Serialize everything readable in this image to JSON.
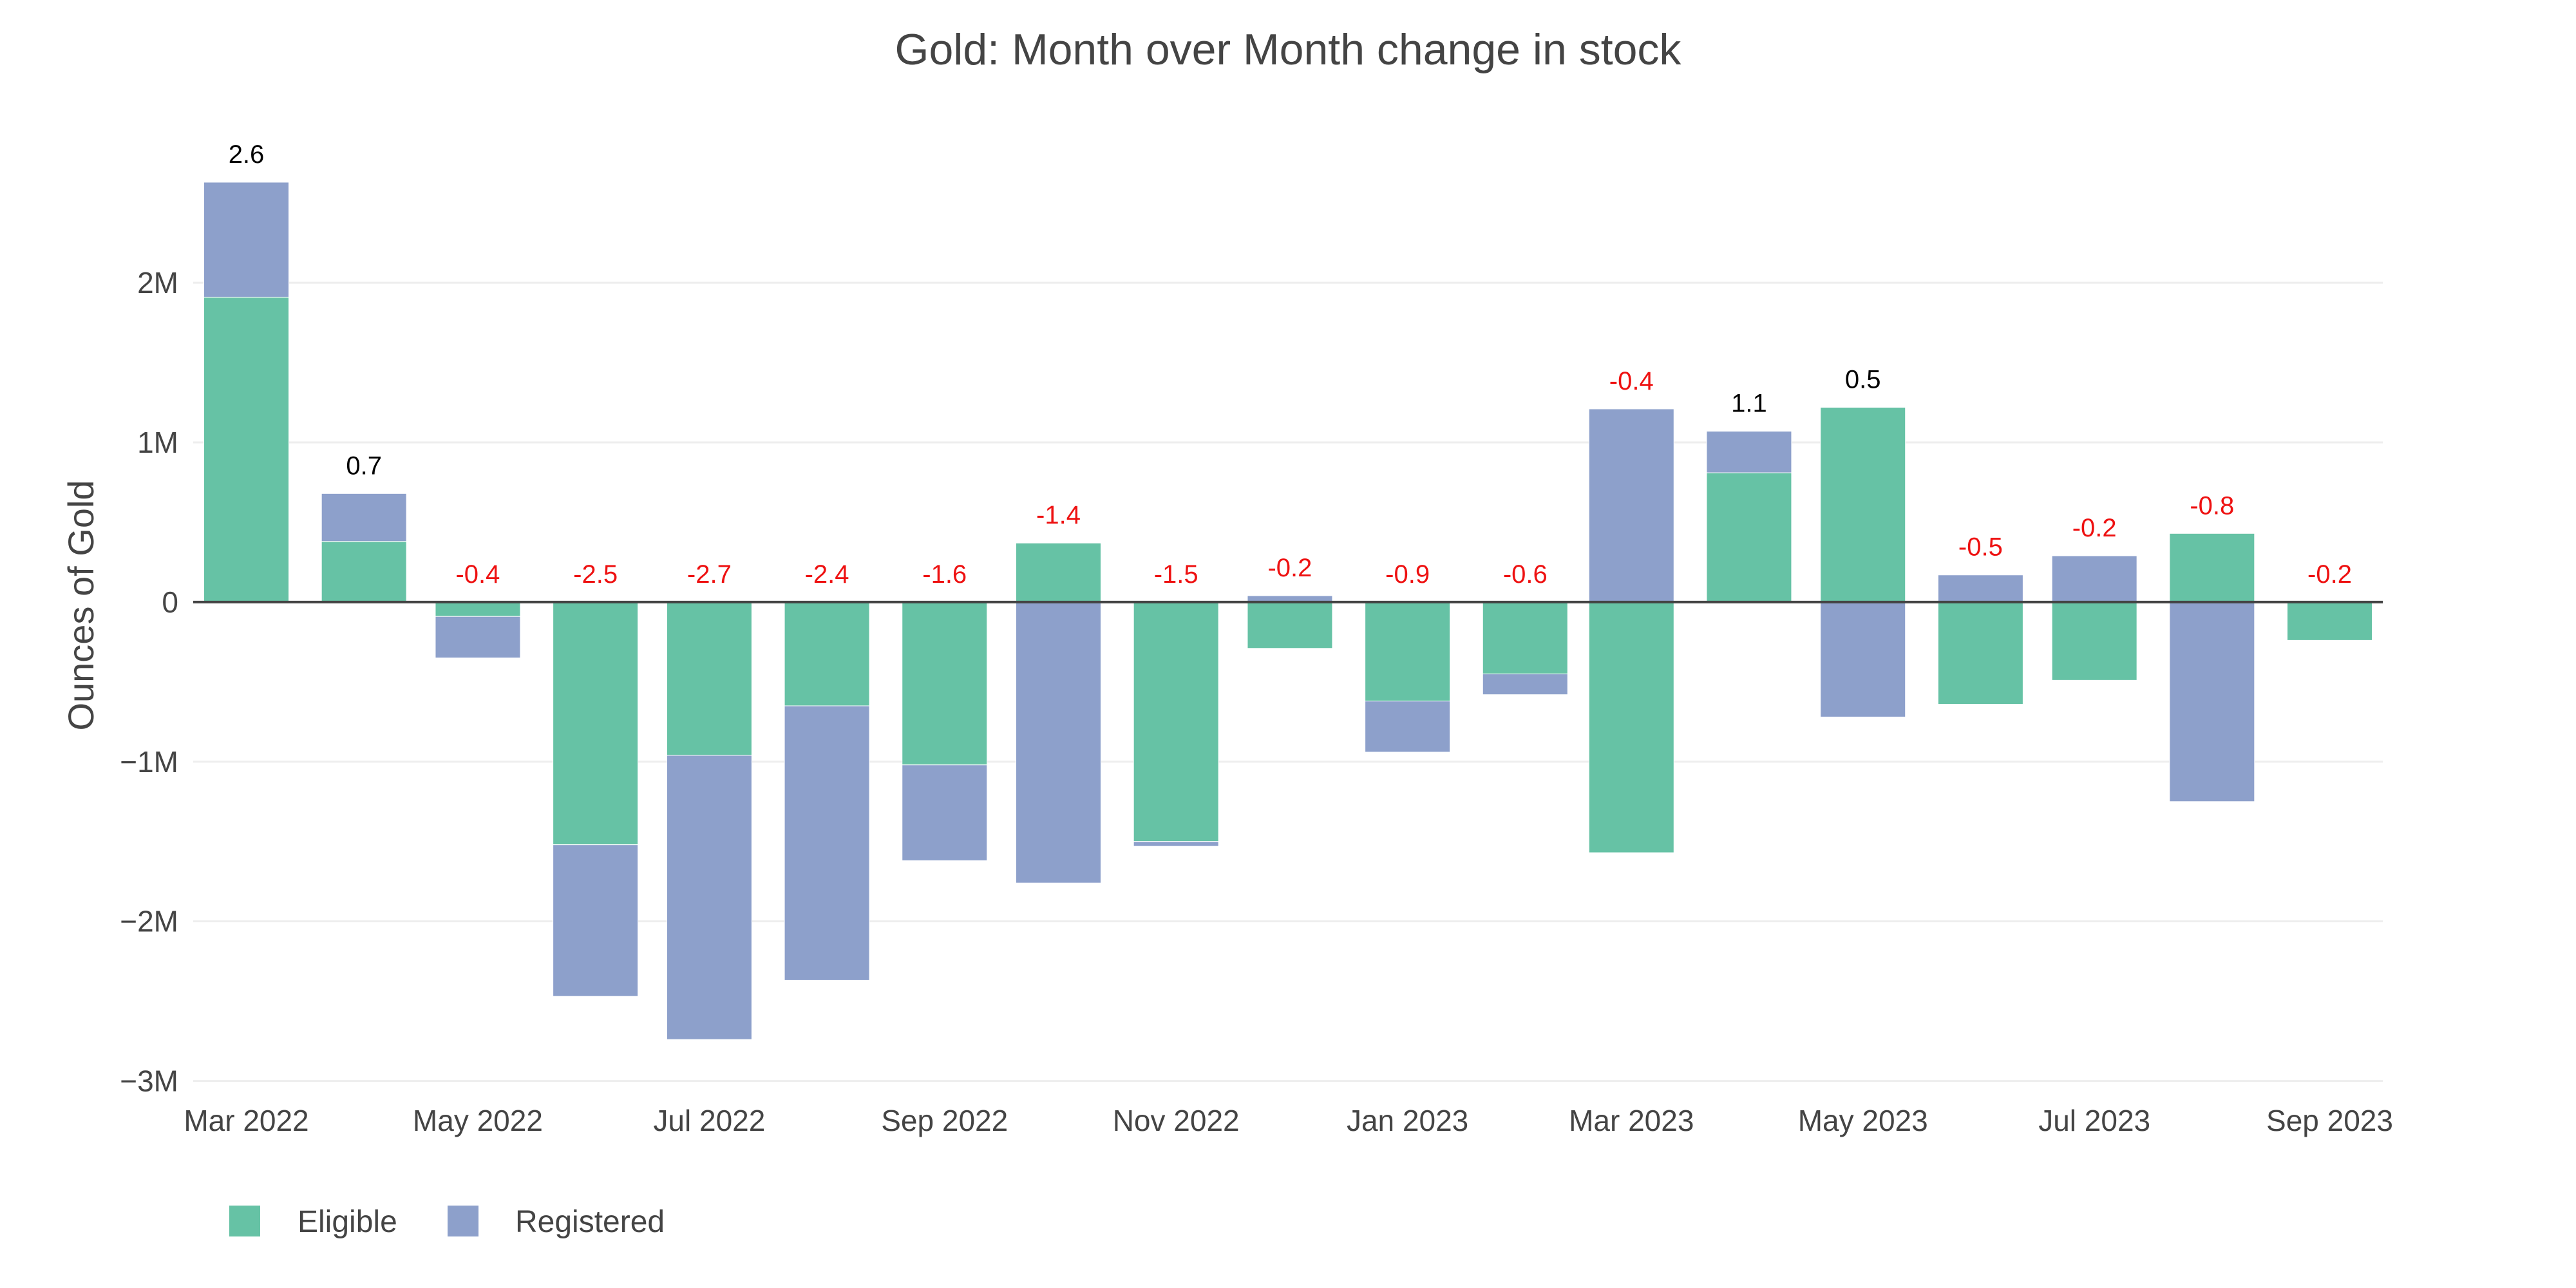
{
  "chart_data": {
    "type": "bar",
    "barmode": "relative",
    "title": "Gold: Month over Month change in stock",
    "xlabel": "",
    "ylabel": "Ounces of Gold",
    "x_type": "date",
    "x_range": [
      "2022-02-15",
      "2023-09-15"
    ],
    "ylim": [
      -3030000,
      2900000
    ],
    "grid": true,
    "categories": [
      "2022-03-01",
      "2022-04-01",
      "2022-05-01",
      "2022-06-01",
      "2022-07-01",
      "2022-08-01",
      "2022-09-01",
      "2022-10-01",
      "2022-11-01",
      "2022-12-01",
      "2023-01-01",
      "2023-02-01",
      "2023-03-01",
      "2023-04-01",
      "2023-05-01",
      "2023-06-01",
      "2023-07-01",
      "2023-08-01",
      "2023-09-01"
    ],
    "x_tick_labels": [
      {
        "date": "2022-03-01",
        "label": "Mar 2022"
      },
      {
        "date": "2022-05-01",
        "label": "May 2022"
      },
      {
        "date": "2022-07-01",
        "label": "Jul 2022"
      },
      {
        "date": "2022-09-01",
        "label": "Sep 2022"
      },
      {
        "date": "2022-11-01",
        "label": "Nov 2022"
      },
      {
        "date": "2023-01-01",
        "label": "Jan 2023"
      },
      {
        "date": "2023-03-01",
        "label": "Mar 2023"
      },
      {
        "date": "2023-05-01",
        "label": "May 2023"
      },
      {
        "date": "2023-07-01",
        "label": "Jul 2023"
      },
      {
        "date": "2023-09-01",
        "label": "Sep 2023"
      }
    ],
    "y_ticks": [
      {
        "value": 2000000,
        "label": "2M"
      },
      {
        "value": 1000000,
        "label": "1M"
      },
      {
        "value": 0,
        "label": "0"
      },
      {
        "value": -1000000,
        "label": "−1M"
      },
      {
        "value": -2000000,
        "label": "−2M"
      },
      {
        "value": -3000000,
        "label": "−3M"
      }
    ],
    "series": [
      {
        "name": "Eligible",
        "color": "#66c2a5",
        "values": [
          1910000,
          380000,
          -90000,
          -1520000,
          -960000,
          -650000,
          -1020000,
          370000,
          -1500000,
          -290000,
          -620000,
          -450000,
          -1570000,
          810000,
          1220000,
          -640000,
          -490000,
          430000,
          -240000
        ]
      },
      {
        "name": "Registered",
        "color": "#8da0cb",
        "values": [
          720000,
          300000,
          -260000,
          -950000,
          -1780000,
          -1720000,
          -600000,
          -1760000,
          -30000,
          40000,
          -320000,
          -130000,
          1210000,
          260000,
          -720000,
          170000,
          290000,
          -1250000,
          0
        ]
      }
    ],
    "total_labels": [
      "2.6",
      "0.7",
      "-0.4",
      "-2.5",
      "-2.7",
      "-2.4",
      "-1.6",
      "-1.4",
      "-1.5",
      "-0.2",
      "-0.9",
      "-0.6",
      "-0.4",
      "1.1",
      "0.5",
      "-0.5",
      "-0.2",
      "-0.8",
      "-0.2"
    ],
    "label_colors": {
      "positive": "#000000",
      "negative": "#ee1111"
    },
    "legend": {
      "placement": "bottom-left",
      "orientation": "horizontal"
    }
  }
}
